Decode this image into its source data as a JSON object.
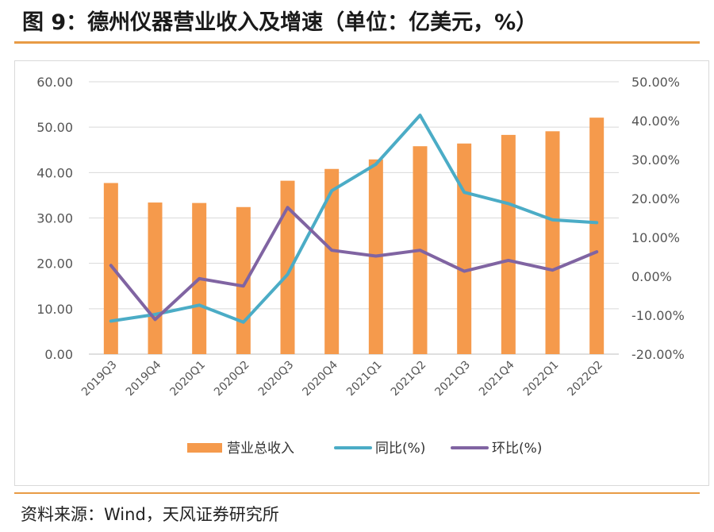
{
  "header": {
    "title": "图 9：德州仪器营业收入及增速（单位：亿美元，%）"
  },
  "footer": {
    "source": "资料来源：Wind，天风证券研究所"
  },
  "chart_data": {
    "type": "bar+line",
    "categories": [
      "2019Q3",
      "2019Q4",
      "2020Q1",
      "2020Q2",
      "2020Q3",
      "2020Q4",
      "2021Q1",
      "2021Q2",
      "2021Q3",
      "2021Q4",
      "2022Q1",
      "2022Q2"
    ],
    "series": [
      {
        "name": "营业总收入",
        "type": "bar",
        "axis": "left",
        "color": "#f59a4c",
        "values": [
          37.7,
          33.4,
          33.3,
          32.4,
          38.2,
          40.8,
          42.9,
          45.8,
          46.4,
          48.3,
          49.1,
          52.1
        ]
      },
      {
        "name": "同比(%)",
        "type": "line",
        "axis": "right",
        "color": "#4bacc6",
        "values": [
          -11.5,
          -9.8,
          -7.4,
          -11.8,
          0.5,
          22.0,
          28.8,
          41.4,
          21.6,
          18.7,
          14.5,
          13.8
        ]
      },
      {
        "name": "环比(%)",
        "type": "line",
        "axis": "right",
        "color": "#8064a2",
        "values": [
          2.8,
          -11.1,
          -0.6,
          -2.5,
          17.7,
          6.7,
          5.2,
          6.7,
          1.3,
          4.1,
          1.6,
          6.3
        ]
      }
    ],
    "left_axis": {
      "min": 0,
      "max": 60,
      "step": 10,
      "tick_labels": [
        "0.00",
        "10.00",
        "20.00",
        "30.00",
        "40.00",
        "50.00",
        "60.00"
      ]
    },
    "right_axis": {
      "min": -20,
      "max": 50,
      "step": 10,
      "tick_labels": [
        "-20.00%",
        "-10.00%",
        "0.00%",
        "10.00%",
        "20.00%",
        "30.00%",
        "40.00%",
        "50.00%"
      ]
    },
    "grid": true,
    "legend_position": "bottom"
  }
}
